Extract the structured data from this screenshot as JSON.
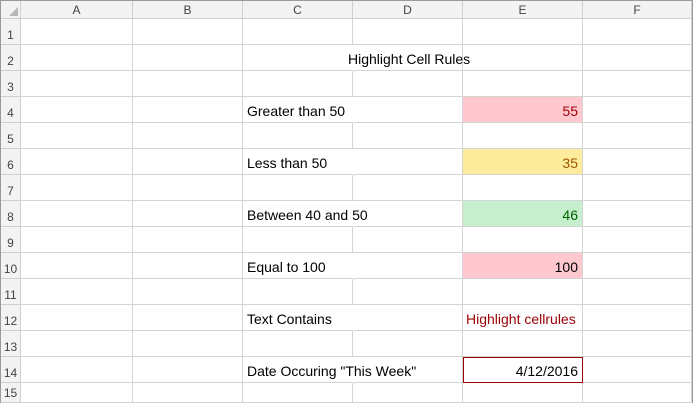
{
  "columns": [
    "A",
    "B",
    "C",
    "D",
    "E",
    "F"
  ],
  "rows": [
    "1",
    "2",
    "3",
    "4",
    "5",
    "6",
    "7",
    "8",
    "9",
    "10",
    "11",
    "12",
    "13",
    "14",
    "15"
  ],
  "title": "Highlight Cell Rules",
  "rules": [
    {
      "label": "Greater than 50",
      "value": "55"
    },
    {
      "label": "Less than 50",
      "value": "35"
    },
    {
      "label": "Between 40 and 50",
      "value": "46"
    },
    {
      "label": "Equal to 100",
      "value": "100"
    },
    {
      "label": "Text Contains",
      "value": "Highlight cellrules"
    },
    {
      "label": "Date Occuring \"This Week\"",
      "value": "4/12/2016"
    }
  ],
  "colors": {
    "red_fill": "#ffc7ce",
    "red_text": "#9c0006",
    "yellow_fill": "#ffeb9c",
    "yellow_text": "#9c5700",
    "green_fill": "#c6efce",
    "green_text": "#006100"
  }
}
